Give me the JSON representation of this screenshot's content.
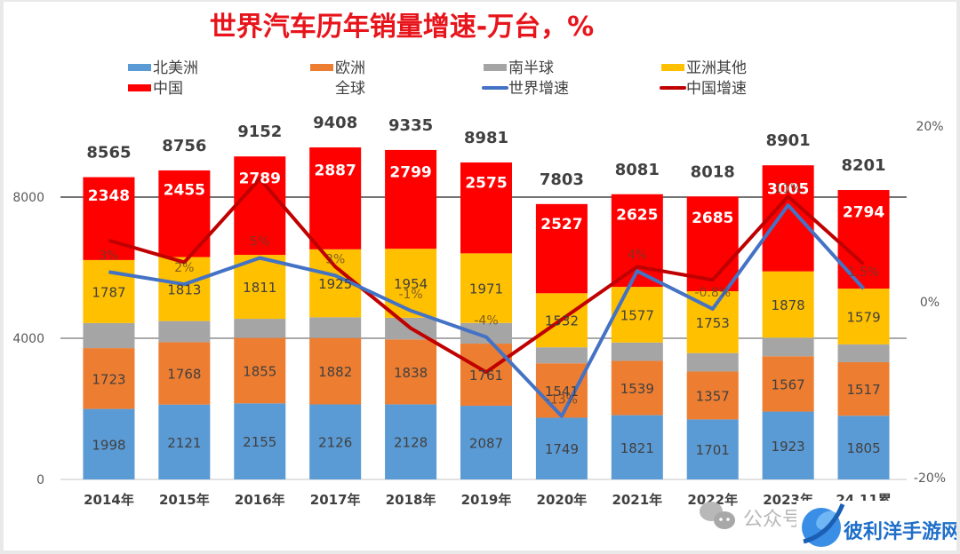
{
  "chart_data": {
    "type": "bar",
    "subtype": "stacked-bar-with-lines",
    "title": "世界汽车历年销量增速-万台，%",
    "categories": [
      "2014年",
      "2015年",
      "2016年",
      "2017年",
      "2018年",
      "2019年",
      "2020年",
      "2021年",
      "2022年",
      "2023年",
      "24.11累"
    ],
    "series": [
      {
        "name": "北美洲",
        "color": "#5b9bd5",
        "values": [
          1998,
          2121,
          2155,
          2126,
          2128,
          2087,
          1749,
          1821,
          1701,
          1923,
          1805
        ],
        "labels_shown": true
      },
      {
        "name": "欧洲",
        "color": "#ed7d31",
        "values": [
          1723,
          1768,
          1855,
          1882,
          1838,
          1761,
          1541,
          1539,
          1357,
          1567,
          1517
        ],
        "labels_shown": true
      },
      {
        "name": "南半球",
        "color": "#a5a5a5",
        "values": [
          709,
          599,
          542,
          588,
          616,
          587,
          454,
          519,
          522,
          528,
          506
        ],
        "labels_shown": false
      },
      {
        "name": "亚洲其他",
        "color": "#ffc000",
        "values": [
          1787,
          1813,
          1811,
          1925,
          1954,
          1971,
          1532,
          1577,
          1753,
          1878,
          1579
        ],
        "labels_shown": true
      },
      {
        "name": "中国",
        "color": "#ff0000",
        "values": [
          2348,
          2455,
          2789,
          2887,
          2799,
          2575,
          2527,
          2625,
          2685,
          3005,
          2794
        ],
        "labels_shown": true
      }
    ],
    "totals": {
      "name": "全球",
      "values": [
        8565,
        8756,
        9152,
        9408,
        9335,
        8981,
        7803,
        8081,
        8018,
        8901,
        8201
      ]
    },
    "lines": [
      {
        "name": "世界增速",
        "color": "#4472c4",
        "axis": "right",
        "values": [
          3.4,
          2.0,
          5.0,
          3.0,
          -1.0,
          -4.0,
          -13.0,
          3.5,
          -0.8,
          11.0,
          1.5
        ]
      },
      {
        "name": "中国增速",
        "color": "#c00000",
        "axis": "right",
        "values": [
          7.0,
          4.5,
          14.0,
          4.0,
          -3.0,
          -8.0,
          -2.0,
          4.0,
          2.5,
          12.0,
          4.3
        ]
      }
    ],
    "pct_labels": [
      "3%",
      "2%",
      "5%",
      "3%",
      "-1%",
      "-4%",
      "-13%",
      "4%",
      "-0.8%",
      "11%",
      "1.5%"
    ],
    "ylim": [
      0,
      10000
    ],
    "yticks": [
      "0",
      "4000",
      "8000"
    ],
    "y2lim": [
      -20,
      20
    ],
    "y2ticks": [
      "-20%",
      "0%",
      "20%"
    ],
    "xlabel": "",
    "ylabel": "",
    "grid": true,
    "legend_position": "top"
  },
  "legend": {
    "items": [
      {
        "label": "北美洲",
        "kind": "box",
        "color": "#5b9bd5"
      },
      {
        "label": "欧洲",
        "kind": "box",
        "color": "#ed7d31"
      },
      {
        "label": "南半球",
        "kind": "box",
        "color": "#a5a5a5"
      },
      {
        "label": "亚洲其他",
        "kind": "box",
        "color": "#ffc000"
      },
      {
        "label": "中国",
        "kind": "box",
        "color": "#ff0000"
      },
      {
        "label": "全球",
        "kind": "none",
        "color": ""
      },
      {
        "label": "世界增速",
        "kind": "line",
        "color": "#4472c4"
      },
      {
        "label": "中国增速",
        "kind": "line",
        "color": "#c00000"
      }
    ]
  },
  "watermark": {
    "wechat_text": "公众号",
    "site_name": "彼利洋手游网"
  }
}
